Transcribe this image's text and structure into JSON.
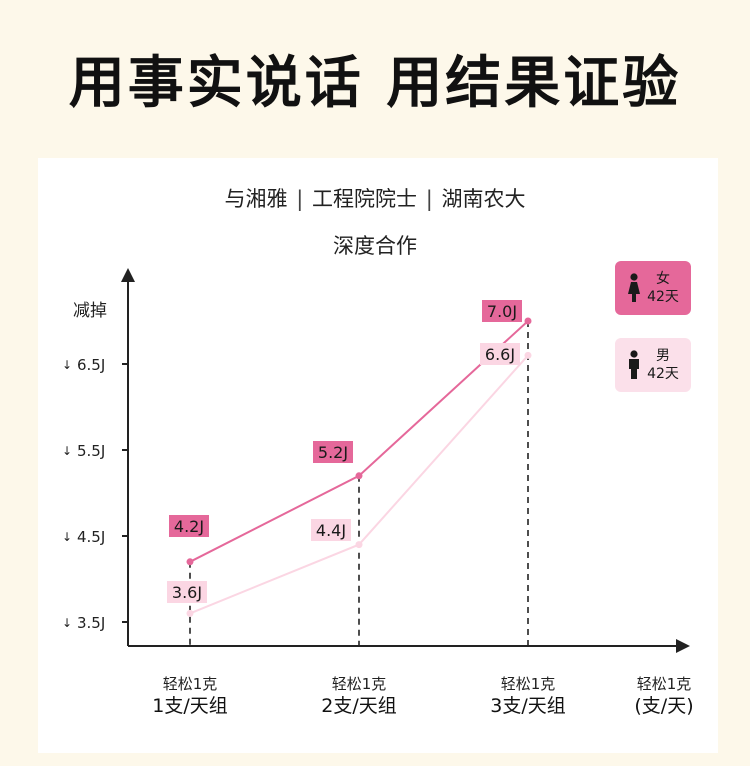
{
  "headline": "用事实说话 用结果证验",
  "partners": {
    "items": [
      "与湘雅",
      "工程院院士",
      "湖南农大"
    ],
    "separator": "|"
  },
  "subtitle": "深度合作",
  "colors": {
    "female": "#e5689a",
    "male": "#fbd6e3",
    "axis": "#222222",
    "background": "#fdf8ea",
    "card": "#ffffff"
  },
  "legend": {
    "female": {
      "gender": "女",
      "days": "42天",
      "icon": "female-person-icon"
    },
    "male": {
      "gender": "男",
      "days": "42天",
      "icon": "male-person-icon"
    }
  },
  "chart_data": {
    "type": "line",
    "ylabel": "减掉",
    "yticks": [
      {
        "value": 3.5,
        "label": "3.5J",
        "arrow": "↓"
      },
      {
        "value": 4.5,
        "label": "4.5J",
        "arrow": "↓"
      },
      {
        "value": 5.5,
        "label": "5.5J",
        "arrow": "↓"
      },
      {
        "value": 6.5,
        "label": "6.5J",
        "arrow": "↓"
      }
    ],
    "categories": [
      {
        "top": "轻松1克",
        "bottom": "1支/天组"
      },
      {
        "top": "轻松1克",
        "bottom": "2支/天组"
      },
      {
        "top": "轻松1克",
        "bottom": "3支/天组"
      }
    ],
    "xunit": {
      "top": "轻松1克",
      "bottom": "(支/天)"
    },
    "series": [
      {
        "name": "女",
        "values": [
          4.2,
          5.2,
          7.0
        ],
        "labels": [
          "4.2J",
          "5.2J",
          "7.0J"
        ]
      },
      {
        "name": "男",
        "values": [
          3.6,
          4.4,
          6.6
        ],
        "labels": [
          "3.6J",
          "4.4J",
          "6.6J"
        ]
      }
    ],
    "grid": false,
    "legend_position": "top-right"
  }
}
